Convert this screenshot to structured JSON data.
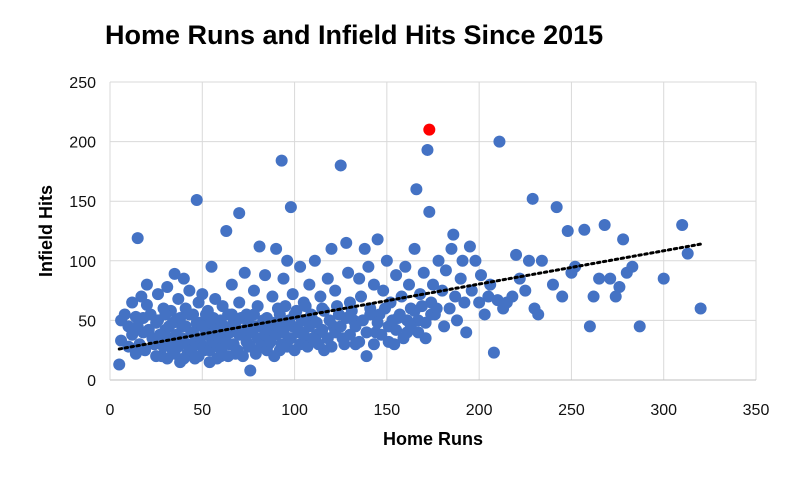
{
  "chart_data": {
    "type": "scatter",
    "title": "Home Runs and Infield Hits Since 2015",
    "xlabel": "Home Runs",
    "ylabel": "Infield Hits",
    "xlim": [
      0,
      350
    ],
    "ylim": [
      0,
      250
    ],
    "x_ticks": [
      "0",
      "50",
      "100",
      "150",
      "200",
      "250",
      "300",
      "350"
    ],
    "y_ticks": [
      "0",
      "50",
      "100",
      "150",
      "200",
      "250"
    ],
    "grid": true,
    "legend": "none",
    "colors": {
      "points": "#4472C4",
      "highlight": "#FF0000",
      "trendline": "#000000",
      "grid": "#D9D9D9"
    },
    "trendline": {
      "style": "dotted",
      "x": [
        5,
        320
      ],
      "y": [
        26,
        114
      ]
    },
    "highlight_point": {
      "x": 173,
      "y": 210
    },
    "series": [
      {
        "points": [
          [
            5,
            13
          ],
          [
            6,
            33
          ],
          [
            6,
            50
          ],
          [
            8,
            55
          ],
          [
            10,
            45
          ],
          [
            12,
            65
          ],
          [
            14,
            53
          ],
          [
            15,
            119
          ],
          [
            17,
            70
          ],
          [
            18,
            40
          ],
          [
            20,
            80
          ],
          [
            20,
            63
          ],
          [
            22,
            55
          ],
          [
            24,
            30
          ],
          [
            25,
            48
          ],
          [
            26,
            72
          ],
          [
            28,
            20
          ],
          [
            29,
            60
          ],
          [
            30,
            42
          ],
          [
            31,
            78
          ],
          [
            32,
            35
          ],
          [
            33,
            58
          ],
          [
            34,
            25
          ],
          [
            35,
            89
          ],
          [
            36,
            50
          ],
          [
            37,
            68
          ],
          [
            38,
            15
          ],
          [
            39,
            45
          ],
          [
            40,
            85
          ],
          [
            40,
            32
          ],
          [
            41,
            60
          ],
          [
            42,
            22
          ],
          [
            43,
            75
          ],
          [
            44,
            40
          ],
          [
            45,
            55
          ],
          [
            46,
            18
          ],
          [
            47,
            151
          ],
          [
            48,
            65
          ],
          [
            48,
            30
          ],
          [
            49,
            48
          ],
          [
            50,
            72
          ],
          [
            51,
            25
          ],
          [
            52,
            42
          ],
          [
            53,
            58
          ],
          [
            54,
            15
          ],
          [
            55,
            95
          ],
          [
            55,
            35
          ],
          [
            56,
            52
          ],
          [
            57,
            68
          ],
          [
            58,
            28
          ],
          [
            59,
            45
          ],
          [
            60,
            20
          ],
          [
            61,
            62
          ],
          [
            62,
            38
          ],
          [
            63,
            125
          ],
          [
            64,
            55
          ],
          [
            65,
            30
          ],
          [
            66,
            80
          ],
          [
            67,
            48
          ],
          [
            68,
            22
          ],
          [
            70,
            140
          ],
          [
            70,
            65
          ],
          [
            72,
            40
          ],
          [
            73,
            90
          ],
          [
            74,
            55
          ],
          [
            75,
            28
          ],
          [
            76,
            8
          ],
          [
            78,
            75
          ],
          [
            79,
            45
          ],
          [
            80,
            62
          ],
          [
            81,
            112
          ],
          [
            82,
            35
          ],
          [
            84,
            88
          ],
          [
            85,
            52
          ],
          [
            86,
            30
          ],
          [
            88,
            70
          ],
          [
            89,
            42
          ],
          [
            90,
            110
          ],
          [
            91,
            60
          ],
          [
            92,
            25
          ],
          [
            93,
            184
          ],
          [
            94,
            85
          ],
          [
            95,
            48
          ],
          [
            96,
            100
          ],
          [
            97,
            35
          ],
          [
            98,
            145
          ],
          [
            99,
            72
          ],
          [
            100,
            55
          ],
          [
            102,
            40
          ],
          [
            103,
            95
          ],
          [
            105,
            65
          ],
          [
            106,
            30
          ],
          [
            108,
            80
          ],
          [
            110,
            50
          ],
          [
            111,
            100
          ],
          [
            112,
            38
          ],
          [
            114,
            70
          ],
          [
            115,
            60
          ],
          [
            116,
            25
          ],
          [
            118,
            85
          ],
          [
            120,
            110
          ],
          [
            121,
            45
          ],
          [
            122,
            75
          ],
          [
            124,
            55
          ],
          [
            125,
            180
          ],
          [
            126,
            35
          ],
          [
            128,
            115
          ],
          [
            129,
            90
          ],
          [
            130,
            65
          ],
          [
            132,
            50
          ],
          [
            133,
            30
          ],
          [
            135,
            85
          ],
          [
            136,
            70
          ],
          [
            138,
            110
          ],
          [
            139,
            20
          ],
          [
            140,
            95
          ],
          [
            141,
            60
          ],
          [
            143,
            80
          ],
          [
            144,
            40
          ],
          [
            145,
            118
          ],
          [
            146,
            55
          ],
          [
            148,
            75
          ],
          [
            150,
            100
          ],
          [
            151,
            45
          ],
          [
            152,
            65
          ],
          [
            154,
            30
          ],
          [
            155,
            88
          ],
          [
            156,
            52
          ],
          [
            158,
            70
          ],
          [
            160,
            95
          ],
          [
            161,
            40
          ],
          [
            162,
            80
          ],
          [
            163,
            60
          ],
          [
            165,
            110
          ],
          [
            166,
            160
          ],
          [
            167,
            50
          ],
          [
            168,
            72
          ],
          [
            170,
            90
          ],
          [
            171,
            35
          ],
          [
            172,
            193
          ],
          [
            173,
            141
          ],
          [
            174,
            65
          ],
          [
            175,
            80
          ],
          [
            176,
            55
          ],
          [
            178,
            100
          ],
          [
            180,
            75
          ],
          [
            181,
            45
          ],
          [
            182,
            92
          ],
          [
            184,
            60
          ],
          [
            185,
            110
          ],
          [
            186,
            122
          ],
          [
            187,
            70
          ],
          [
            188,
            50
          ],
          [
            190,
            85
          ],
          [
            191,
            100
          ],
          [
            192,
            65
          ],
          [
            193,
            40
          ],
          [
            195,
            112
          ],
          [
            196,
            75
          ],
          [
            198,
            100
          ],
          [
            200,
            65
          ],
          [
            201,
            88
          ],
          [
            203,
            55
          ],
          [
            205,
            70
          ],
          [
            206,
            80
          ],
          [
            208,
            23
          ],
          [
            210,
            67
          ],
          [
            211,
            200
          ],
          [
            213,
            60
          ],
          [
            215,
            65
          ],
          [
            218,
            70
          ],
          [
            220,
            105
          ],
          [
            222,
            85
          ],
          [
            225,
            75
          ],
          [
            227,
            100
          ],
          [
            229,
            152
          ],
          [
            230,
            60
          ],
          [
            232,
            55
          ],
          [
            234,
            100
          ],
          [
            240,
            80
          ],
          [
            242,
            145
          ],
          [
            245,
            70
          ],
          [
            248,
            125
          ],
          [
            250,
            90
          ],
          [
            252,
            95
          ],
          [
            257,
            126
          ],
          [
            260,
            45
          ],
          [
            262,
            70
          ],
          [
            265,
            85
          ],
          [
            268,
            130
          ],
          [
            271,
            85
          ],
          [
            274,
            70
          ],
          [
            276,
            78
          ],
          [
            278,
            118
          ],
          [
            280,
            90
          ],
          [
            283,
            95
          ],
          [
            287,
            45
          ],
          [
            300,
            85
          ],
          [
            310,
            130
          ],
          [
            313,
            106
          ],
          [
            320,
            60
          ],
          [
            10,
            28
          ],
          [
            12,
            38
          ],
          [
            14,
            22
          ],
          [
            15,
            45
          ],
          [
            16,
            30
          ],
          [
            18,
            52
          ],
          [
            19,
            25
          ],
          [
            21,
            42
          ],
          [
            23,
            35
          ],
          [
            25,
            20
          ],
          [
            26,
            50
          ],
          [
            27,
            38
          ],
          [
            29,
            28
          ],
          [
            30,
            55
          ],
          [
            31,
            18
          ],
          [
            32,
            45
          ],
          [
            33,
            32
          ],
          [
            34,
            48
          ],
          [
            35,
            22
          ],
          [
            36,
            38
          ],
          [
            37,
            28
          ],
          [
            38,
            52
          ],
          [
            39,
            35
          ],
          [
            40,
            18
          ],
          [
            41,
            45
          ],
          [
            42,
            30
          ],
          [
            43,
            55
          ],
          [
            44,
            25
          ],
          [
            45,
            40
          ],
          [
            46,
            32
          ],
          [
            47,
            48
          ],
          [
            48,
            20
          ],
          [
            49,
            35
          ],
          [
            50,
            45
          ],
          [
            51,
            28
          ],
          [
            52,
            55
          ],
          [
            53,
            38
          ],
          [
            54,
            25
          ],
          [
            55,
            48
          ],
          [
            56,
            32
          ],
          [
            57,
            42
          ],
          [
            58,
            18
          ],
          [
            59,
            35
          ],
          [
            60,
            50
          ],
          [
            61,
            28
          ],
          [
            62,
            45
          ],
          [
            63,
            32
          ],
          [
            64,
            20
          ],
          [
            65,
            40
          ],
          [
            66,
            55
          ],
          [
            67,
            30
          ],
          [
            68,
            45
          ],
          [
            69,
            25
          ],
          [
            70,
            38
          ],
          [
            71,
            52
          ],
          [
            72,
            20
          ],
          [
            73,
            42
          ],
          [
            74,
            32
          ],
          [
            75,
            48
          ],
          [
            76,
            28
          ],
          [
            77,
            40
          ],
          [
            78,
            55
          ],
          [
            79,
            22
          ],
          [
            80,
            35
          ],
          [
            81,
            45
          ],
          [
            82,
            28
          ],
          [
            83,
            50
          ],
          [
            84,
            38
          ],
          [
            85,
            25
          ],
          [
            86,
            42
          ],
          [
            87,
            32
          ],
          [
            88,
            48
          ],
          [
            89,
            20
          ],
          [
            90,
            38
          ],
          [
            91,
            45
          ],
          [
            92,
            55
          ],
          [
            93,
            30
          ],
          [
            94,
            40
          ],
          [
            95,
            62
          ],
          [
            96,
            28
          ],
          [
            97,
            50
          ],
          [
            98,
            35
          ],
          [
            99,
            45
          ],
          [
            100,
            25
          ],
          [
            101,
            58
          ],
          [
            102,
            42
          ],
          [
            103,
            30
          ],
          [
            104,
            50
          ],
          [
            105,
            38
          ],
          [
            106,
            62
          ],
          [
            107,
            28
          ],
          [
            108,
            45
          ],
          [
            109,
            55
          ],
          [
            110,
            35
          ],
          [
            112,
            48
          ],
          [
            113,
            30
          ],
          [
            115,
            42
          ],
          [
            116,
            58
          ],
          [
            118,
            35
          ],
          [
            119,
            50
          ],
          [
            120,
            28
          ],
          [
            122,
            40
          ],
          [
            123,
            62
          ],
          [
            125,
            45
          ],
          [
            127,
            30
          ],
          [
            128,
            52
          ],
          [
            130,
            38
          ],
          [
            131,
            58
          ],
          [
            133,
            45
          ],
          [
            135,
            32
          ],
          [
            137,
            50
          ],
          [
            139,
            40
          ],
          [
            141,
            55
          ],
          [
            143,
            30
          ],
          [
            145,
            48
          ],
          [
            147,
            38
          ],
          [
            149,
            60
          ],
          [
            151,
            32
          ],
          [
            153,
            50
          ],
          [
            155,
            42
          ],
          [
            157,
            55
          ],
          [
            159,
            35
          ],
          [
            161,
            50
          ],
          [
            163,
            45
          ],
          [
            165,
            58
          ],
          [
            167,
            40
          ],
          [
            169,
            62
          ],
          [
            171,
            48
          ],
          [
            174,
            55
          ],
          [
            177,
            60
          ]
        ]
      }
    ]
  }
}
